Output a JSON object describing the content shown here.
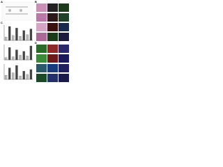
{
  "panels": [
    {
      "label": "A"
    },
    {
      "label": "B"
    },
    {
      "label": "C",
      "charts": [
        {
          "values": [
            20,
            85,
            30,
            75,
            25,
            60,
            35,
            70
          ]
        },
        {
          "values": [
            15,
            80,
            20,
            65,
            30,
            55,
            25,
            90
          ]
        },
        {
          "values": [
            25,
            70,
            40,
            85,
            20,
            50,
            30,
            60
          ]
        }
      ]
    },
    {
      "label": "D"
    }
  ]
}
